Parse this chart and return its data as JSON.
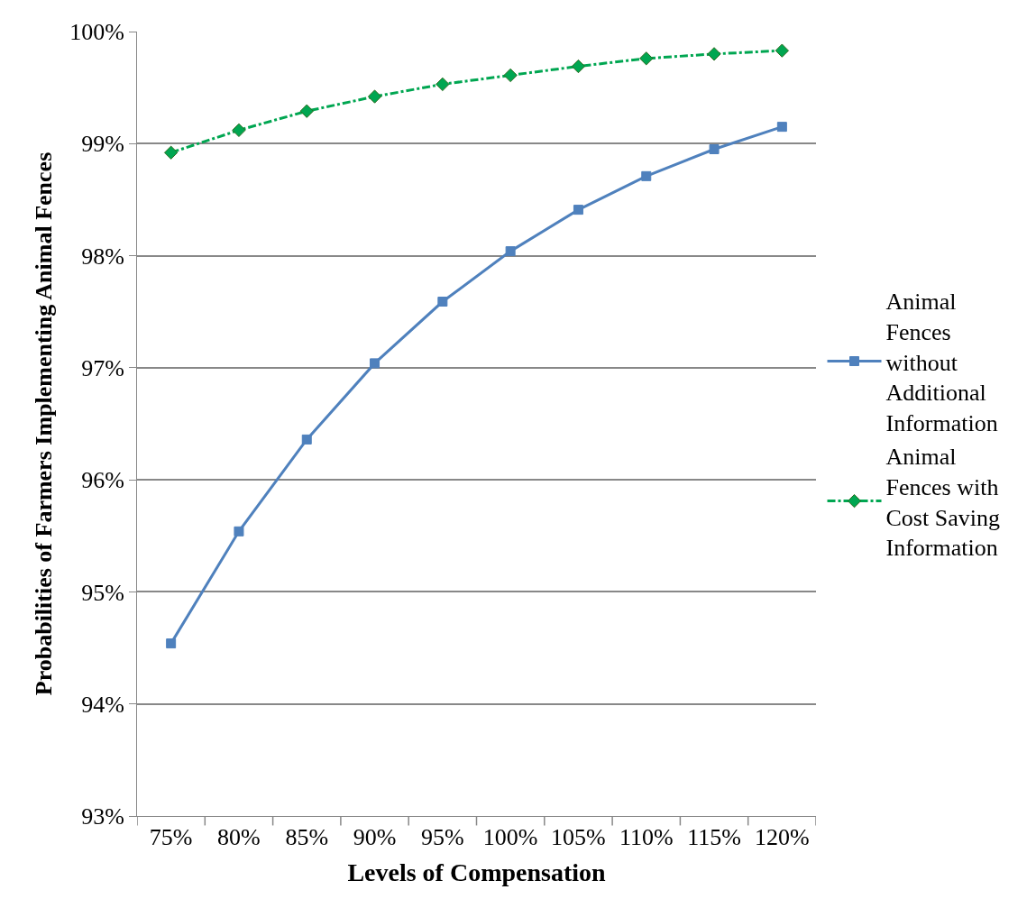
{
  "chart_data": {
    "type": "line",
    "xlabel": "Levels of Compensation",
    "ylabel": "Probabilities of Farmers Implementing Animal Fences",
    "categories": [
      "75%",
      "80%",
      "85%",
      "90%",
      "95%",
      "100%",
      "105%",
      "110%",
      "115%",
      "120%"
    ],
    "series": [
      {
        "name": "Animal Fences without Additional Information",
        "color": "#4f81bd",
        "marker": "square",
        "line_style": "solid",
        "values": [
          94.54,
          95.54,
          96.36,
          97.04,
          97.59,
          98.04,
          98.41,
          98.71,
          98.95,
          99.15
        ]
      },
      {
        "name": "Animal Fences with Cost Saving Information",
        "color": "#00a651",
        "marker": "diamond",
        "line_style": "dashed",
        "values": [
          98.92,
          99.12,
          99.29,
          99.42,
          99.53,
          99.61,
          99.69,
          99.76,
          99.8,
          99.83
        ]
      }
    ],
    "ylim": [
      93,
      100
    ],
    "yticks": [
      {
        "value": 93,
        "label": "93%"
      },
      {
        "value": 94,
        "label": "94%"
      },
      {
        "value": 95,
        "label": "95%"
      },
      {
        "value": 96,
        "label": "96%"
      },
      {
        "value": 97,
        "label": "97%"
      },
      {
        "value": 98,
        "label": "98%"
      },
      {
        "value": 99,
        "label": "99%"
      },
      {
        "value": 100,
        "label": "100%"
      }
    ],
    "grid": "y",
    "legend": "right"
  }
}
